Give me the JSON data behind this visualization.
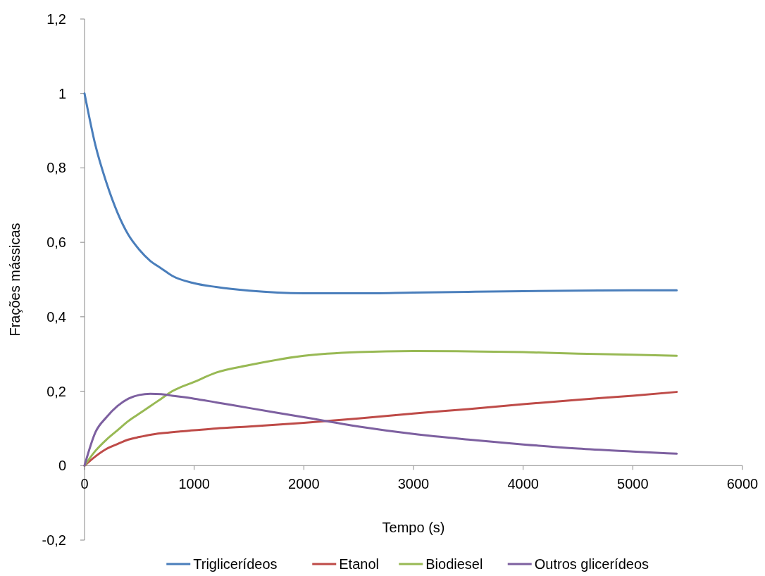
{
  "chart_data": {
    "type": "line",
    "xlabel": "Tempo (s)",
    "ylabel": "Frações mássicas",
    "xlim": [
      0,
      6000
    ],
    "xticks": [
      0,
      1000,
      2000,
      3000,
      4000,
      5000,
      6000
    ],
    "ylim": [
      -0.2,
      1.2
    ],
    "yticks": [
      {
        "value": -0.2,
        "label": "-0,2"
      },
      0,
      {
        "value": 0.2,
        "label": "0,2"
      },
      {
        "value": 0.4,
        "label": "0,4"
      },
      {
        "value": 0.6,
        "label": "0,6"
      },
      {
        "value": 0.8,
        "label": "0,8"
      },
      1,
      {
        "value": 1.2,
        "label": "1,2"
      }
    ],
    "grid": false,
    "legend": "bottom",
    "marker": "none",
    "line_style": "solid",
    "x": [
      0,
      100,
      200,
      300,
      400,
      500,
      600,
      700,
      800,
      1000,
      1200,
      1500,
      2000,
      2500,
      3000,
      3500,
      4000,
      4500,
      5000,
      5400
    ],
    "series": [
      {
        "name": "Triglicerídeos",
        "color": "#4a7ebb",
        "values": [
          1,
          0.86,
          0.76,
          0.68,
          0.62,
          0.58,
          0.55,
          0.53,
          0.51,
          0.49,
          0.48,
          0.47,
          0.463,
          0.463,
          0.465,
          0.467,
          0.469,
          0.47,
          0.471,
          0.471
        ]
      },
      {
        "name": "Etanol",
        "color": "#be4b48",
        "values": [
          0,
          0.025,
          0.045,
          0.058,
          0.07,
          0.077,
          0.083,
          0.087,
          0.09,
          0.095,
          0.1,
          0.105,
          0.115,
          0.127,
          0.14,
          0.152,
          0.165,
          0.177,
          0.188,
          0.198
        ]
      },
      {
        "name": "Biodiesel",
        "color": "#98b954",
        "values": [
          0,
          0.04,
          0.07,
          0.095,
          0.12,
          0.14,
          0.16,
          0.18,
          0.2,
          0.225,
          0.25,
          0.27,
          0.295,
          0.305,
          0.308,
          0.307,
          0.305,
          0.301,
          0.298,
          0.295
        ]
      },
      {
        "name": "Outros glicerídeos",
        "color": "#7d60a0",
        "values": [
          0,
          0.09,
          0.13,
          0.16,
          0.18,
          0.19,
          0.193,
          0.192,
          0.188,
          0.18,
          0.17,
          0.155,
          0.13,
          0.105,
          0.085,
          0.07,
          0.057,
          0.046,
          0.038,
          0.032
        ]
      }
    ]
  }
}
